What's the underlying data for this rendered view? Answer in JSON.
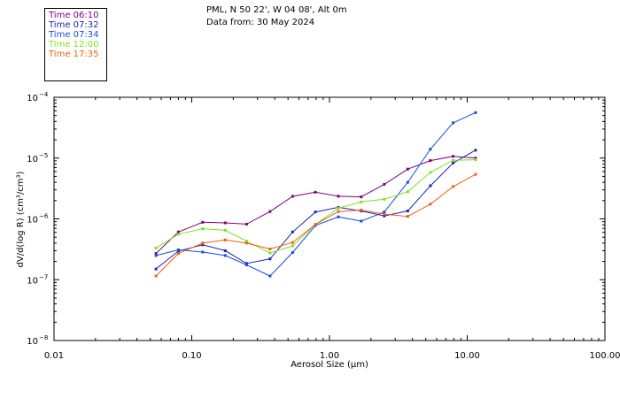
{
  "header": {
    "location": "PML, N 50 22', W 04 08', Alt 0m",
    "date": "Data from: 30 May 2024"
  },
  "chart_data": {
    "type": "line",
    "xscale": "log",
    "yscale": "log",
    "xlim": [
      0.01,
      100
    ],
    "ylim": [
      1e-08,
      0.0001
    ],
    "xlabel": "Aerosol Size (μm)",
    "ylabel": "dV/d(log R)  (cm³/cm³)",
    "x_ticks": [
      {
        "value": 0.01,
        "label": "0.01"
      },
      {
        "value": 0.1,
        "label": "0.10"
      },
      {
        "value": 1,
        "label": "1.00"
      },
      {
        "value": 10,
        "label": "10.00"
      },
      {
        "value": 100,
        "label": "100.00"
      }
    ],
    "y_ticks": [
      {
        "value": 1e-08,
        "base": "10",
        "exp": "−8"
      },
      {
        "value": 1e-07,
        "base": "10",
        "exp": "−7"
      },
      {
        "value": 1e-06,
        "base": "10",
        "exp": "−6"
      },
      {
        "value": 1e-05,
        "base": "10",
        "exp": "−5"
      },
      {
        "value": 0.0001,
        "base": "10",
        "exp": "−4"
      }
    ],
    "x": [
      0.055,
      0.08,
      0.12,
      0.175,
      0.25,
      0.37,
      0.54,
      0.79,
      1.16,
      1.7,
      2.5,
      3.7,
      5.4,
      7.9,
      11.5
    ],
    "series": [
      {
        "name": "Time 06:10",
        "color": "#800080",
        "values": [
          2.7e-07,
          6.1e-07,
          8.8e-07,
          8.6e-07,
          8.2e-07,
          1.32e-06,
          2.35e-06,
          2.75e-06,
          2.36e-06,
          2.3e-06,
          3.7e-06,
          6.6e-06,
          9.1e-06,
          1.07e-05,
          1e-05
        ]
      },
      {
        "name": "Time 07:32",
        "color": "#2020c0",
        "values": [
          1.5e-07,
          2.95e-07,
          3.75e-07,
          3e-07,
          1.85e-07,
          2.2e-07,
          6.1e-07,
          1.3e-06,
          1.55e-06,
          1.35e-06,
          1.12e-06,
          1.35e-06,
          3.5e-06,
          8.3e-06,
          1.35e-05
        ]
      },
      {
        "name": "Time 07:34",
        "color": "#1050e0",
        "values": [
          2.5e-07,
          3.1e-07,
          2.85e-07,
          2.5e-07,
          1.75e-07,
          1.15e-07,
          2.8e-07,
          7.8e-07,
          1.08e-06,
          9.2e-07,
          1.3e-06,
          4e-06,
          1.4e-05,
          3.8e-05,
          5.6e-05
        ]
      },
      {
        "name": "Time 12:00",
        "color": "#80e020",
        "values": [
          3.3e-07,
          5.6e-07,
          6.9e-07,
          6.5e-07,
          4.3e-07,
          2.75e-07,
          3.6e-07,
          8.1e-07,
          1.5e-06,
          1.9e-06,
          2.1e-06,
          2.8e-06,
          5.8e-06,
          9.2e-06,
          9.4e-06
        ]
      },
      {
        "name": "Time 17:35",
        "color": "#f06010",
        "values": [
          1.15e-07,
          2.7e-07,
          4e-07,
          4.5e-07,
          4e-07,
          3.2e-07,
          4.1e-07,
          8.1e-07,
          1.32e-06,
          1.4e-06,
          1.2e-06,
          1.1e-06,
          1.75e-06,
          3.4e-06,
          5.4e-06
        ]
      }
    ]
  }
}
